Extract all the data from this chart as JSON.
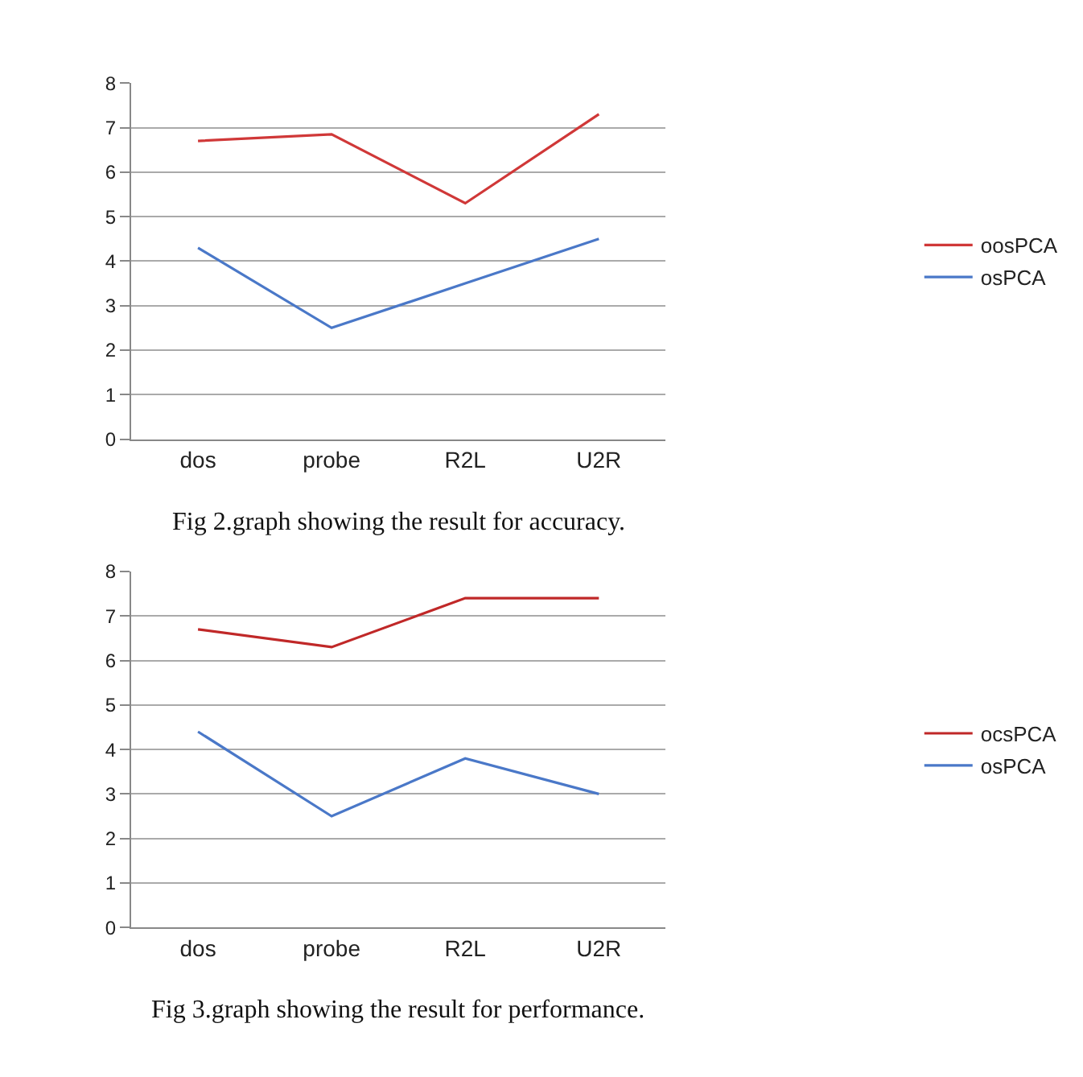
{
  "chart_data": [
    {
      "type": "line",
      "categories": [
        "dos",
        "probe",
        "R2L",
        "U2R"
      ],
      "series": [
        {
          "name": "oosPCA",
          "color": "#d03838",
          "values": [
            6.7,
            6.85,
            5.3,
            7.3
          ]
        },
        {
          "name": "osPCA",
          "color": "#4a78c8",
          "values": [
            4.3,
            2.5,
            3.5,
            4.5
          ]
        }
      ],
      "ylim": [
        0,
        8
      ],
      "yticks": [
        0,
        1,
        2,
        3,
        4,
        5,
        6,
        7,
        8
      ],
      "grid": "y",
      "legend": "right",
      "marker": "none",
      "line_style": "solid",
      "annotations": [
        "Fig 2.graph showing the result for accuracy."
      ]
    },
    {
      "type": "line",
      "categories": [
        "dos",
        "probe",
        "R2L",
        "U2R"
      ],
      "series": [
        {
          "name": "ocsPCA",
          "color": "#c02828",
          "values": [
            6.7,
            6.3,
            7.4,
            7.4
          ]
        },
        {
          "name": "osPCA",
          "color": "#4a78c8",
          "values": [
            4.4,
            2.5,
            3.8,
            3.0
          ]
        }
      ],
      "ylim": [
        0,
        8
      ],
      "yticks": [
        0,
        1,
        2,
        3,
        4,
        5,
        6,
        7,
        8
      ],
      "grid": "y",
      "legend": "right",
      "marker": "none",
      "line_style": "solid",
      "annotations": [
        "Fig 3.graph showing the result for performance."
      ]
    }
  ]
}
